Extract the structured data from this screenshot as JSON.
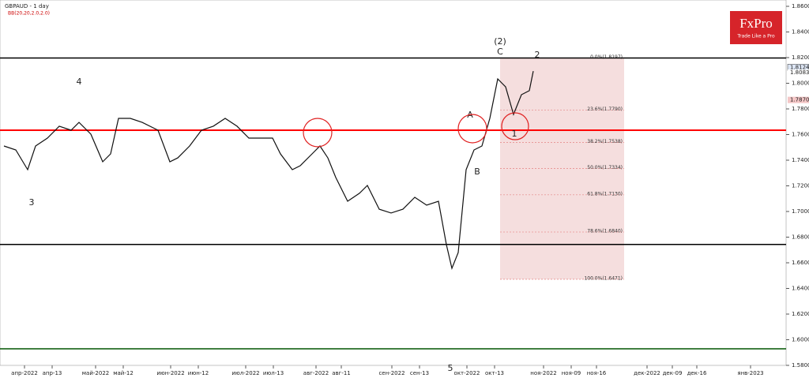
{
  "chart_data": {
    "type": "line",
    "title": "GBPAUD - 1 day",
    "subtitle": "BB(20,20,2.0,2.0)",
    "brand": {
      "name": "FxPro",
      "tagline": "Trade Like a Pro"
    },
    "x": [
      1.25,
      5,
      8.75,
      11.25,
      15,
      18.75,
      22.5,
      25,
      28.75,
      32.5,
      35,
      37.5,
      41.25,
      45,
      50,
      53.75,
      56.25,
      60,
      63.75,
      67.5,
      71.25,
      75,
      78.75,
      82.5,
      86.25,
      88.75,
      92.5,
      95,
      98.75,
      101.25,
      103.75,
      106.25,
      110,
      113.75,
      116.25,
      120,
      123.75,
      127.5,
      131.25,
      135,
      138.75,
      141.25,
      143,
      145,
      147.5,
      150,
      152.5,
      155,
      157.5,
      160,
      162.5,
      165,
      167.5,
      168.75
    ],
    "series": [
      {
        "name": "GBPAUD",
        "color": "#111111",
        "values": [
          1.7511,
          1.748,
          1.7326,
          1.7511,
          1.7572,
          1.7665,
          1.7634,
          1.7695,
          1.7603,
          1.7388,
          1.7449,
          1.7726,
          1.7726,
          1.7695,
          1.7634,
          1.7388,
          1.7418,
          1.7511,
          1.7634,
          1.7665,
          1.7726,
          1.7665,
          1.7572,
          1.7572,
          1.7572,
          1.7449,
          1.7326,
          1.7357,
          1.7449,
          1.7511,
          1.7418,
          1.7265,
          1.708,
          1.7142,
          1.7203,
          1.7018,
          1.6988,
          1.7018,
          1.7111,
          1.7049,
          1.708,
          1.6742,
          1.6557,
          1.668,
          1.7326,
          1.748,
          1.7511,
          1.7726,
          1.8034,
          1.7972,
          1.7757,
          1.7911,
          1.7942,
          1.8095
        ]
      }
    ],
    "xlim": [
      0,
      248.75
    ],
    "xticks": [
      {
        "value": 7.75,
        "label": "апр-2022"
      },
      {
        "value": 16.5,
        "label": "апр-13"
      },
      {
        "value": 30.25,
        "label": "май-2022"
      },
      {
        "value": 39,
        "label": "май-12"
      },
      {
        "value": 54,
        "label": "июн-2022"
      },
      {
        "value": 62.75,
        "label": "июн-12"
      },
      {
        "value": 77.75,
        "label": "июл-2022"
      },
      {
        "value": 86.5,
        "label": "июл-13"
      },
      {
        "value": 100,
        "label": "авг-2022"
      },
      {
        "value": 108,
        "label": "авг-11"
      },
      {
        "value": 124,
        "label": "сен-2022"
      },
      {
        "value": 132.75,
        "label": "сен-13"
      },
      {
        "value": 147.75,
        "label": "окт-2022"
      },
      {
        "value": 156.5,
        "label": "окт-13"
      },
      {
        "value": 172,
        "label": "ноя-2022"
      },
      {
        "value": 180.75,
        "label": "ноя-09"
      },
      {
        "value": 188.75,
        "label": "ноя-16"
      },
      {
        "value": 204.75,
        "label": "дек-2022"
      },
      {
        "value": 212.75,
        "label": "дек-09"
      },
      {
        "value": 220.5,
        "label": "дек-16"
      },
      {
        "value": 237.5,
        "label": "янв-2023"
      }
    ],
    "ylim": [
      1.58,
      1.86
    ],
    "yticks": [
      {
        "value": 1.86,
        "label": "1.8600"
      },
      {
        "value": 1.84,
        "label": "1.8400"
      },
      {
        "value": 1.82,
        "label": "1.8200"
      },
      {
        "value": 1.8,
        "label": "1.8000"
      },
      {
        "value": 1.78,
        "label": "1.7800"
      },
      {
        "value": 1.76,
        "label": "1.7600"
      },
      {
        "value": 1.74,
        "label": "1.7400"
      },
      {
        "value": 1.72,
        "label": "1.7200"
      },
      {
        "value": 1.7,
        "label": "1.7000"
      },
      {
        "value": 1.68,
        "label": "1.6800"
      },
      {
        "value": 1.66,
        "label": "1.6600"
      },
      {
        "value": 1.64,
        "label": "1.6400"
      },
      {
        "value": 1.62,
        "label": "1.6200"
      },
      {
        "value": 1.6,
        "label": "1.6000"
      },
      {
        "value": 1.58,
        "label": "1.5800"
      }
    ],
    "levels": [
      {
        "value": 1.8197,
        "color": "#000000"
      },
      {
        "value": 1.7634,
        "color": "#ff0000"
      },
      {
        "value": 1.6743,
        "color": "#000000"
      },
      {
        "value": 1.5929,
        "color": "#005500"
      }
    ],
    "fib_levels": [
      {
        "value": 1.8197,
        "label": "0.0%(1.8197)"
      },
      {
        "value": 1.779,
        "label": "23.6%(1.7790)"
      },
      {
        "value": 1.7538,
        "label": "38.2%(1.7538)"
      },
      {
        "value": 1.7334,
        "label": "50.0%(1.7334)"
      },
      {
        "value": 1.713,
        "label": "61.8%(1.7130)"
      },
      {
        "value": 1.684,
        "label": "78.6%(1.6840)"
      },
      {
        "value": 1.6471,
        "label": "100.0%(1.6471)"
      }
    ],
    "price_tags": [
      {
        "value": 1.8124,
        "label": "1.8124"
      },
      {
        "value": 1.8083,
        "label": "1.8083"
      },
      {
        "value": 1.787,
        "label": "1.7870"
      }
    ],
    "wave_labels": [
      "4",
      "3",
      "(2)",
      "C",
      "2",
      "A",
      "B",
      "1",
      "5"
    ]
  }
}
